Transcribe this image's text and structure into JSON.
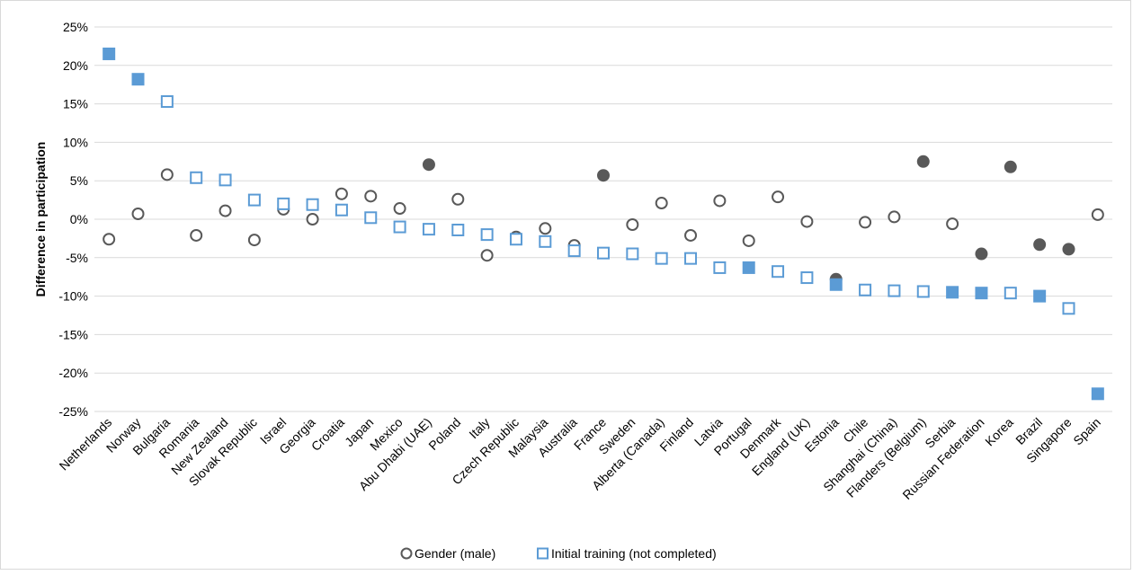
{
  "chart_data": {
    "type": "scatter",
    "title": "",
    "xlabel": "",
    "ylabel": "Difference in participation",
    "ylim": [
      -25,
      25
    ],
    "ytick_step": 5,
    "ytick_labels": [
      "25%",
      "20%",
      "15%",
      "10%",
      "5%",
      "0%",
      "-5%",
      "-10%",
      "-15%",
      "-20%",
      "-25%"
    ],
    "grid": true,
    "legend_position": "bottom",
    "categories": [
      "Netherlands",
      "Norway",
      "Bulgaria",
      "Romania",
      "New Zealand",
      "Slovak Republic",
      "Israel",
      "Georgia",
      "Croatia",
      "Japan",
      "Mexico",
      "Abu Dhabi (UAE)",
      "Poland",
      "Italy",
      "Czech Republic",
      "Malaysia",
      "Australia",
      "France",
      "Sweden",
      "Alberta (Canada)",
      "Finland",
      "Latvia",
      "Portugal",
      "Denmark",
      "England (UK)",
      "Estonia",
      "Chile",
      "Shanghai (China)",
      "Flanders (Belgium)",
      "Serbia",
      "Russian Federation",
      "Korea",
      "Brazil",
      "Singapore",
      "Spain"
    ],
    "series": [
      {
        "name": "Gender (male)",
        "marker": "circle",
        "color": "#595959",
        "values": [
          -2.6,
          0.7,
          5.8,
          -2.1,
          1.1,
          -2.7,
          1.3,
          0.0,
          3.3,
          3.0,
          1.4,
          7.1,
          2.6,
          -4.7,
          -2.3,
          -1.2,
          -3.4,
          5.7,
          -0.7,
          2.1,
          -2.1,
          2.4,
          -2.8,
          2.9,
          -0.3,
          -7.8,
          -0.4,
          0.3,
          7.5,
          -0.6,
          -4.5,
          6.8,
          -3.3,
          -3.9,
          0.6
        ],
        "filled": [
          false,
          false,
          false,
          false,
          false,
          false,
          false,
          false,
          false,
          false,
          false,
          true,
          false,
          false,
          false,
          false,
          false,
          true,
          false,
          false,
          false,
          false,
          false,
          false,
          false,
          true,
          false,
          false,
          true,
          false,
          true,
          true,
          true,
          true,
          false
        ]
      },
      {
        "name": "Initial training (not completed)",
        "marker": "square",
        "color": "#5b9bd5",
        "values": [
          21.5,
          18.2,
          15.3,
          5.4,
          5.1,
          2.5,
          2.0,
          1.9,
          1.2,
          0.2,
          -1.0,
          -1.3,
          -1.4,
          -2.0,
          -2.6,
          -2.9,
          -4.1,
          -4.4,
          -4.5,
          -5.1,
          -5.1,
          -6.3,
          -6.3,
          -6.8,
          -7.6,
          -8.5,
          -9.2,
          -9.3,
          -9.4,
          -9.5,
          -9.6,
          -9.6,
          -10.0,
          -11.6,
          -22.7
        ],
        "filled": [
          true,
          true,
          false,
          false,
          false,
          false,
          false,
          false,
          false,
          false,
          false,
          false,
          false,
          false,
          false,
          false,
          false,
          false,
          false,
          false,
          false,
          false,
          true,
          false,
          false,
          true,
          false,
          false,
          false,
          true,
          true,
          false,
          true,
          false,
          true
        ]
      }
    ]
  }
}
